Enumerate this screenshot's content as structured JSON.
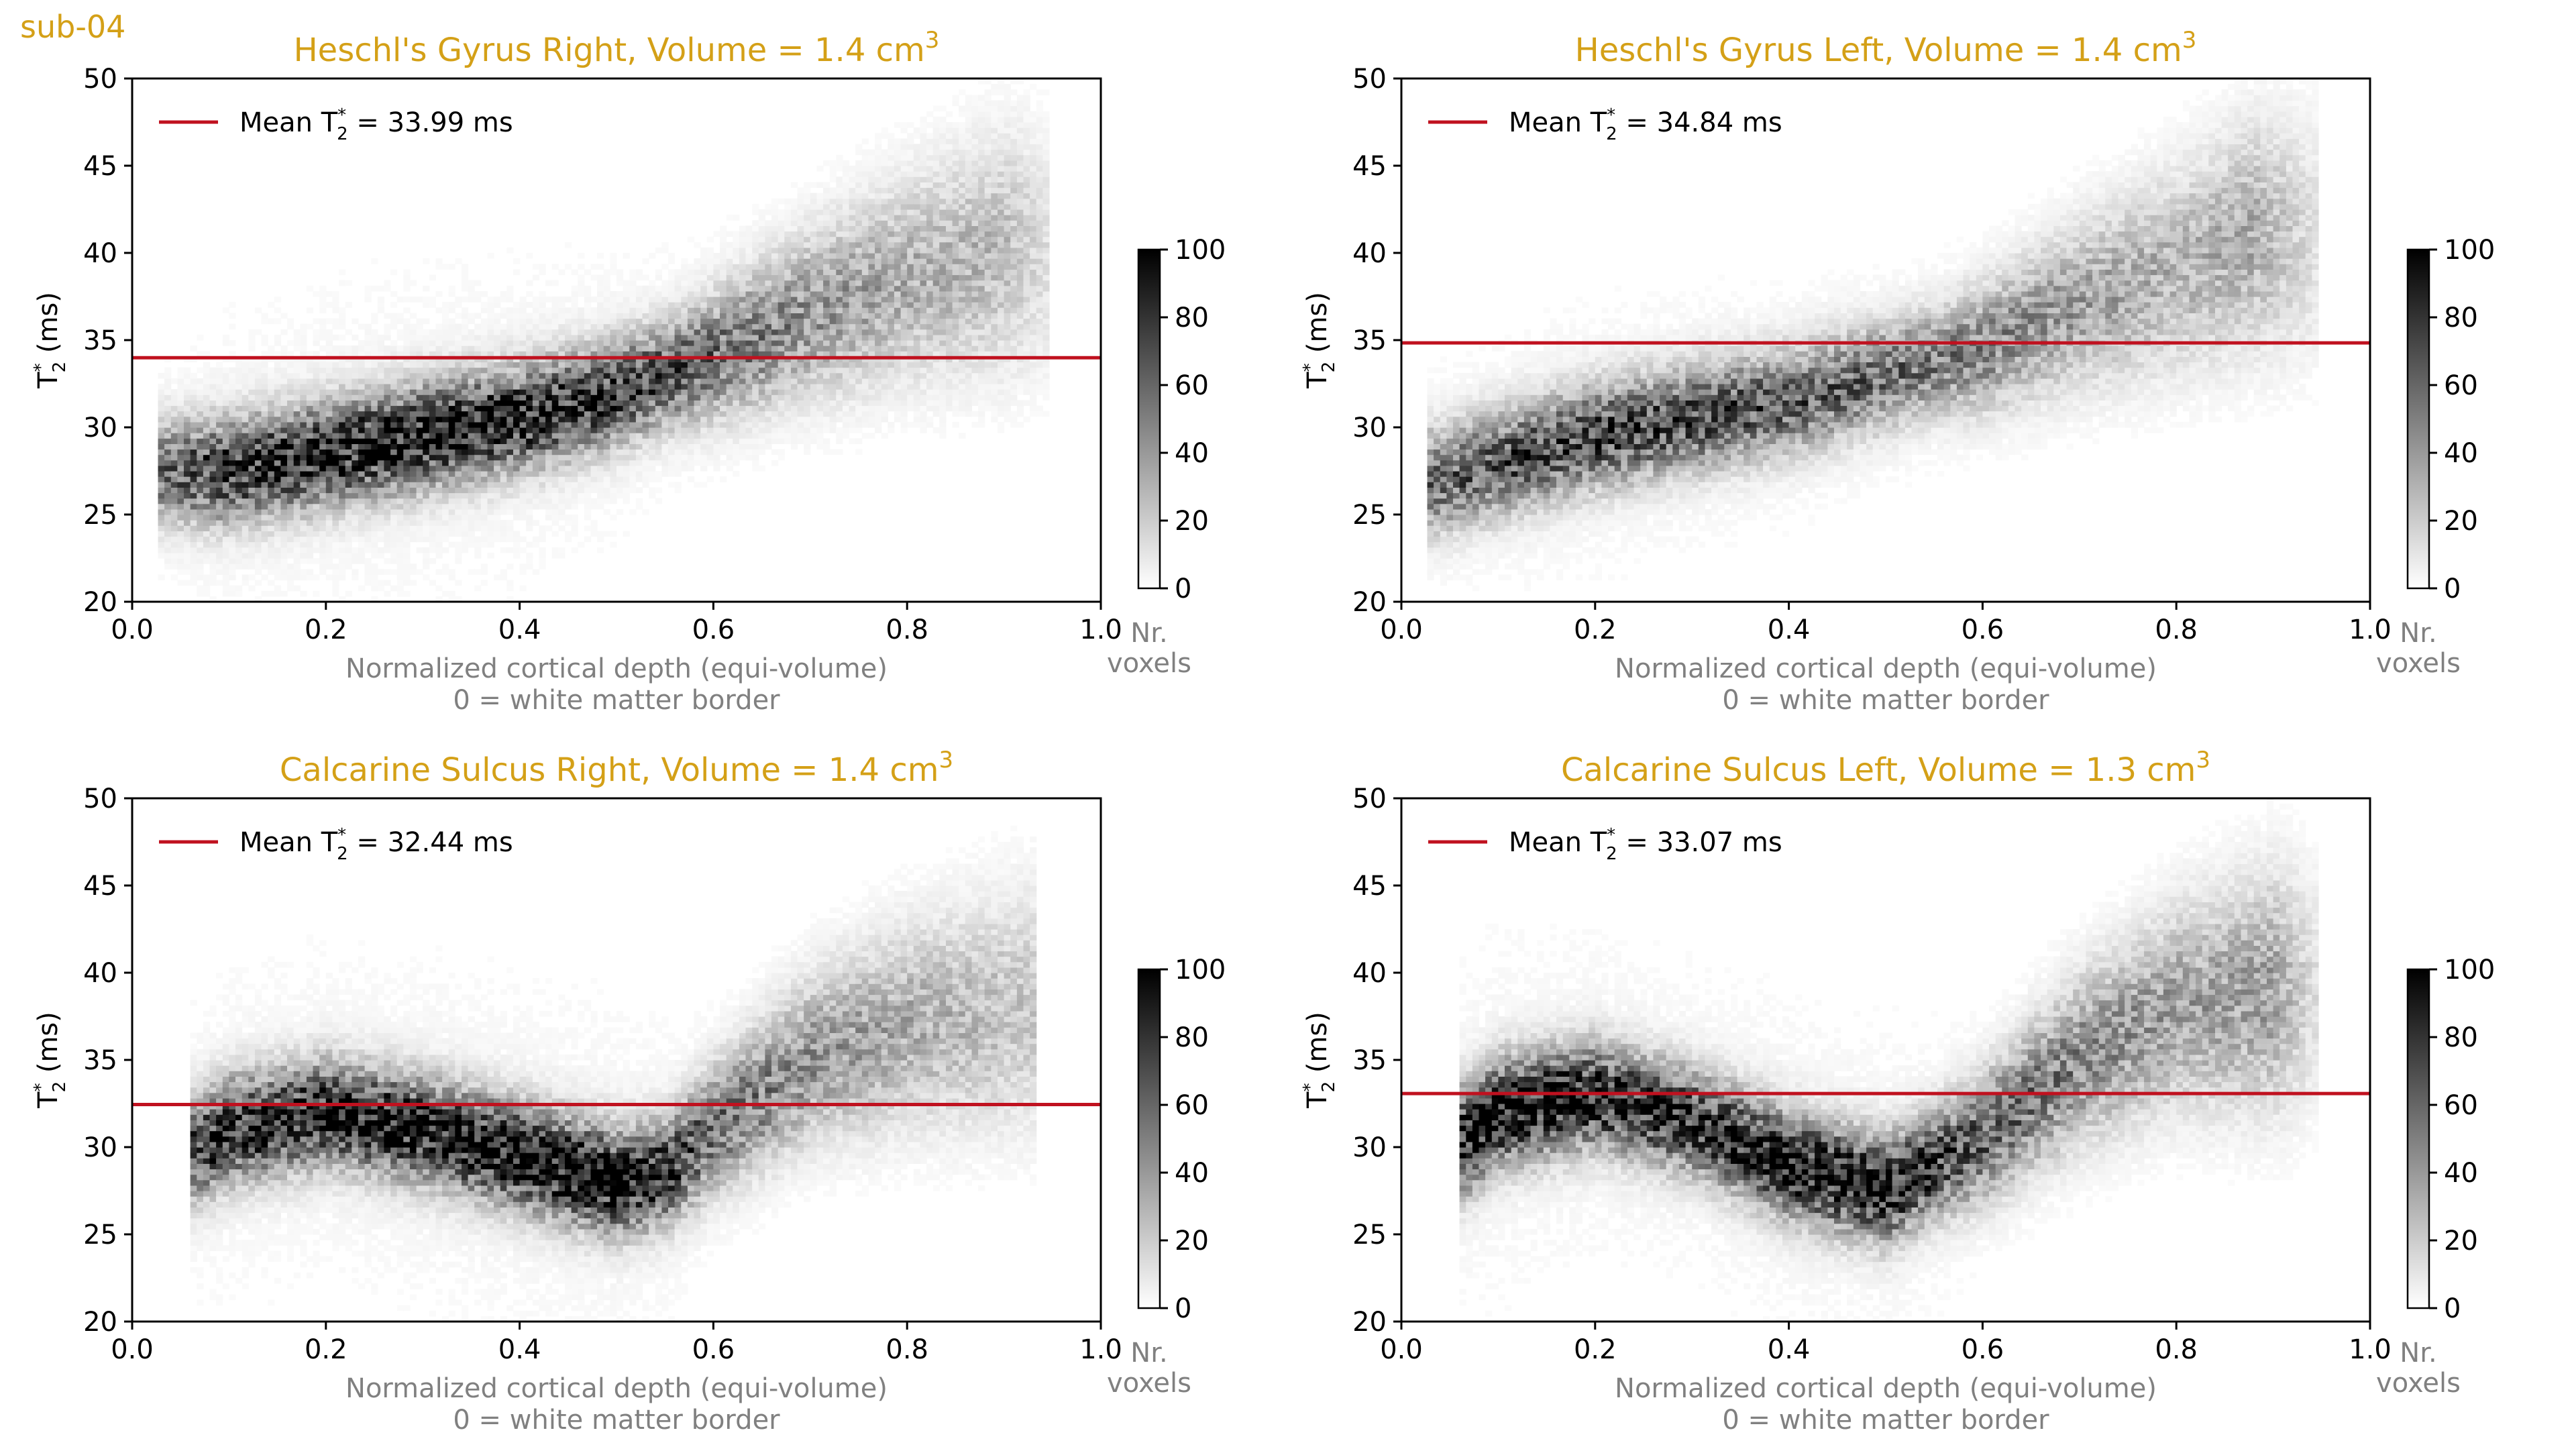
{
  "figure_label": "sub-04",
  "chart_data": [
    {
      "type": "heatmap",
      "title": "Heschl's Gyrus Right, Volume = 1.4 cm",
      "title_superscript": "3",
      "xlabel_line1": "Normalized cortical depth (equi-volume)",
      "xlabel_line2": "0 = white matter border",
      "ylabel": "T*2 (ms)",
      "xlim": [
        0.0,
        1.0
      ],
      "ylim": [
        20,
        50
      ],
      "xticks": [
        "0.0",
        "0.2",
        "0.4",
        "0.6",
        "0.8",
        "1.0"
      ],
      "yticks": [
        "20",
        "25",
        "30",
        "35",
        "40",
        "45",
        "50"
      ],
      "mean_value": 33.99,
      "legend_label": "Mean T*2 = 33.99 ms",
      "colorbar": {
        "label_line1": "Nr.",
        "label_line2": "voxels",
        "range": [
          0,
          100
        ],
        "ticks": [
          "0",
          "20",
          "40",
          "60",
          "80",
          "100"
        ]
      },
      "density_trend": {
        "depth": [
          0.04,
          0.1,
          0.2,
          0.3,
          0.4,
          0.5,
          0.6,
          0.7,
          0.8,
          0.9,
          0.94
        ],
        "peak_t2": [
          27.5,
          27.5,
          28.5,
          29.5,
          30.5,
          32.0,
          34.0,
          36.5,
          38.5,
          40.0,
          40.0
        ],
        "intensity": [
          55,
          80,
          85,
          90,
          85,
          75,
          55,
          40,
          30,
          25,
          12
        ]
      }
    },
    {
      "type": "heatmap",
      "title": "Heschl's Gyrus Left, Volume = 1.4 cm",
      "title_superscript": "3",
      "xlabel_line1": "Normalized cortical depth (equi-volume)",
      "xlabel_line2": "0 = white matter border",
      "ylabel": "T*2 (ms)",
      "xlim": [
        0.0,
        1.0
      ],
      "ylim": [
        20,
        50
      ],
      "xticks": [
        "0.0",
        "0.2",
        "0.4",
        "0.6",
        "0.8",
        "1.0"
      ],
      "yticks": [
        "20",
        "25",
        "30",
        "35",
        "40",
        "45",
        "50"
      ],
      "mean_value": 34.84,
      "legend_label": "Mean T*2 = 34.84 ms",
      "colorbar": {
        "label_line1": "Nr.",
        "label_line2": "voxels",
        "range": [
          0,
          100
        ],
        "ticks": [
          "0",
          "20",
          "40",
          "60",
          "80",
          "100"
        ]
      },
      "density_trend": {
        "depth": [
          0.04,
          0.1,
          0.2,
          0.3,
          0.4,
          0.5,
          0.6,
          0.7,
          0.8,
          0.88,
          0.94
        ],
        "peak_t2": [
          27.0,
          28.0,
          29.5,
          30.5,
          31.5,
          33.0,
          34.5,
          37.0,
          39.0,
          41.0,
          41.0
        ],
        "intensity": [
          55,
          65,
          70,
          68,
          62,
          55,
          45,
          35,
          28,
          30,
          12
        ]
      }
    },
    {
      "type": "heatmap",
      "title": "Calcarine Sulcus Right, Volume = 1.4 cm",
      "title_superscript": "3",
      "xlabel_line1": "Normalized cortical depth (equi-volume)",
      "xlabel_line2": "0 = white matter border",
      "ylabel": "T*2 (ms)",
      "xlim": [
        0.0,
        1.0
      ],
      "ylim": [
        20,
        50
      ],
      "xticks": [
        "0.0",
        "0.2",
        "0.4",
        "0.6",
        "0.8",
        "1.0"
      ],
      "yticks": [
        "20",
        "25",
        "30",
        "35",
        "40",
        "45",
        "50"
      ],
      "mean_value": 32.44,
      "legend_label": "Mean T*2 = 32.44 ms",
      "colorbar": {
        "label_line1": "Nr.",
        "label_line2": "voxels",
        "range": [
          0,
          100
        ],
        "ticks": [
          "0",
          "20",
          "40",
          "60",
          "80",
          "100"
        ]
      },
      "density_trend": {
        "depth": [
          0.07,
          0.1,
          0.2,
          0.3,
          0.4,
          0.5,
          0.55,
          0.6,
          0.7,
          0.8,
          0.93
        ],
        "peak_t2": [
          30.0,
          31.0,
          32.0,
          31.0,
          29.5,
          28.0,
          28.5,
          31.0,
          35.0,
          37.0,
          38.0
        ],
        "intensity": [
          75,
          85,
          85,
          90,
          95,
          95,
          80,
          55,
          40,
          30,
          20
        ]
      }
    },
    {
      "type": "heatmap",
      "title": "Calcarine Sulcus Left, Volume = 1.3 cm",
      "title_superscript": "3",
      "xlabel_line1": "Normalized cortical depth (equi-volume)",
      "xlabel_line2": "0 = white matter border",
      "ylabel": "T*2 (ms)",
      "xlim": [
        0.0,
        1.0
      ],
      "ylim": [
        20,
        50
      ],
      "xticks": [
        "0.0",
        "0.2",
        "0.4",
        "0.6",
        "0.8",
        "1.0"
      ],
      "yticks": [
        "20",
        "25",
        "30",
        "35",
        "40",
        "45",
        "50"
      ],
      "mean_value": 33.07,
      "legend_label": "Mean T*2 = 33.07 ms",
      "colorbar": {
        "label_line1": "Nr.",
        "label_line2": "voxels",
        "range": [
          0,
          100
        ],
        "ticks": [
          "0",
          "20",
          "40",
          "60",
          "80",
          "100"
        ]
      },
      "density_trend": {
        "depth": [
          0.07,
          0.1,
          0.2,
          0.3,
          0.4,
          0.5,
          0.6,
          0.7,
          0.8,
          0.9,
          0.94
        ],
        "peak_t2": [
          30.5,
          32.0,
          33.0,
          31.5,
          29.0,
          27.5,
          30.5,
          35.0,
          38.0,
          39.0,
          39.0
        ],
        "intensity": [
          90,
          95,
          85,
          80,
          90,
          90,
          60,
          45,
          35,
          35,
          12
        ]
      }
    }
  ],
  "colors": {
    "mean_line": "#C0111F",
    "title": "#D4A017",
    "axis_label": "#808080",
    "tick": "#000000"
  }
}
